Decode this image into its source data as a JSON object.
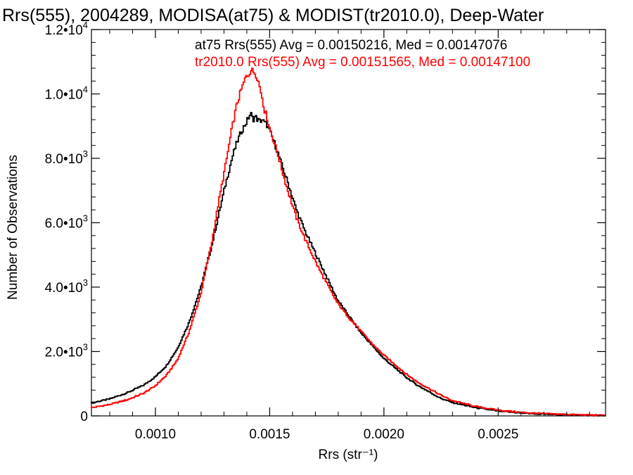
{
  "chart_data": {
    "type": "line",
    "title": "Rrs(555), 2004289, MODISA(at75) & MODIST(tr2010.0), Deep-Water",
    "xlabel": "Rrs (str⁻¹)",
    "ylabel": "Number of Observations",
    "xlim": [
      0.00072,
      0.00297
    ],
    "ylim": [
      0,
      12000
    ],
    "x_ticks": [
      0.001,
      0.0015,
      0.002,
      0.0025
    ],
    "x_tick_labels": [
      "0.0010",
      "0.0015",
      "0.0020",
      "0.0025"
    ],
    "y_ticks": [
      0,
      2000,
      4000,
      6000,
      8000,
      10000,
      12000
    ],
    "y_tick_labels": [
      {
        "mantissa": "0",
        "exponent": ""
      },
      {
        "mantissa": "2.0•10",
        "exponent": "3"
      },
      {
        "mantissa": "4.0•10",
        "exponent": "3"
      },
      {
        "mantissa": "6.0•10",
        "exponent": "3"
      },
      {
        "mantissa": "8.0•10",
        "exponent": "3"
      },
      {
        "mantissa": "1.0•10",
        "exponent": "4"
      },
      {
        "mantissa": "1.2•10",
        "exponent": "4"
      }
    ],
    "grid": false,
    "legend_placement": "top-right",
    "series": [
      {
        "label": "at75 Rrs(555) Avg = 0.00150216, Med = 0.00147076",
        "color": "#000000",
        "x": [
          0.00072,
          0.0008,
          0.00088,
          0.00095,
          0.001,
          0.00105,
          0.0011,
          0.00115,
          0.0012,
          0.00125,
          0.00128,
          0.00131,
          0.00134,
          0.00136,
          0.00138,
          0.0014,
          0.00141,
          0.00142,
          0.00143,
          0.00144,
          0.00145,
          0.00146,
          0.00147,
          0.00148,
          0.00149,
          0.0015,
          0.00152,
          0.00154,
          0.00156,
          0.00158,
          0.0016,
          0.00162,
          0.00164,
          0.00166,
          0.00168,
          0.0017,
          0.00172,
          0.00175,
          0.00178,
          0.0018,
          0.00185,
          0.0019,
          0.00195,
          0.002,
          0.00205,
          0.0021,
          0.00215,
          0.0022,
          0.00225,
          0.0023,
          0.0024,
          0.0025,
          0.0026,
          0.0027,
          0.0028,
          0.0029,
          0.00297
        ],
        "y": [
          400,
          520,
          720,
          950,
          1200,
          1550,
          2100,
          2900,
          3950,
          5300,
          6250,
          7200,
          8050,
          8500,
          8850,
          9100,
          9250,
          9400,
          9200,
          9300,
          9200,
          9150,
          9200,
          9100,
          9050,
          8900,
          8550,
          8150,
          7700,
          7300,
          6850,
          6400,
          6050,
          5700,
          5400,
          5100,
          4800,
          4350,
          3900,
          3600,
          3100,
          2600,
          2200,
          1800,
          1500,
          1200,
          950,
          750,
          550,
          420,
          260,
          150,
          90,
          55,
          35,
          20,
          10
        ]
      },
      {
        "label": "tr2010.0 Rrs(555) Avg = 0.00151565, Med = 0.00147100",
        "color": "#ff0000",
        "x": [
          0.00072,
          0.0008,
          0.00088,
          0.00095,
          0.001,
          0.00105,
          0.0011,
          0.00115,
          0.0012,
          0.00125,
          0.00128,
          0.00131,
          0.00134,
          0.00136,
          0.00138,
          0.0014,
          0.00141,
          0.00142,
          0.00143,
          0.00144,
          0.00145,
          0.00146,
          0.00147,
          0.00148,
          0.00149,
          0.0015,
          0.00152,
          0.00154,
          0.00156,
          0.00158,
          0.0016,
          0.00162,
          0.00164,
          0.00166,
          0.00168,
          0.0017,
          0.00172,
          0.00175,
          0.00178,
          0.0018,
          0.00185,
          0.0019,
          0.00195,
          0.002,
          0.00205,
          0.0021,
          0.00215,
          0.0022,
          0.00225,
          0.0023,
          0.0024,
          0.0025,
          0.0026,
          0.0027,
          0.0028,
          0.0029,
          0.00297
        ],
        "y": [
          250,
          350,
          500,
          700,
          920,
          1250,
          1750,
          2600,
          3750,
          5400,
          6650,
          7800,
          9000,
          9700,
          10150,
          10550,
          10600,
          10750,
          10700,
          10650,
          10500,
          10200,
          9900,
          9500,
          9300,
          9000,
          8550,
          8100,
          7550,
          7050,
          6600,
          6150,
          5800,
          5450,
          5150,
          4850,
          4550,
          4150,
          3750,
          3500,
          3050,
          2650,
          2250,
          1900,
          1600,
          1300,
          1050,
          850,
          650,
          480,
          300,
          180,
          110,
          70,
          45,
          25,
          15
        ]
      }
    ]
  }
}
